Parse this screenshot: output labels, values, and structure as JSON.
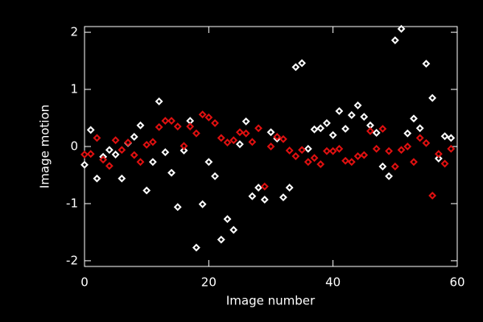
{
  "chart_data": {
    "type": "scatter",
    "xlabel": "Image number",
    "ylabel": "Image motion",
    "xlim": [
      0,
      60
    ],
    "xticks": [
      0,
      20,
      40,
      60
    ],
    "ylim": [
      -2.1,
      2.1
    ],
    "yticks": [
      -2,
      -1,
      0,
      1,
      2
    ],
    "x": [
      0,
      1,
      2,
      3,
      4,
      5,
      6,
      7,
      8,
      9,
      10,
      11,
      12,
      13,
      14,
      15,
      16,
      17,
      18,
      19,
      20,
      21,
      22,
      23,
      24,
      25,
      26,
      27,
      28,
      29,
      30,
      31,
      32,
      33,
      34,
      35,
      36,
      37,
      38,
      39,
      40,
      41,
      42,
      43,
      44,
      45,
      46,
      47,
      48,
      49,
      50,
      51,
      52,
      53,
      54,
      55,
      56,
      57,
      58,
      59
    ],
    "series": [
      {
        "color": "#ffffff",
        "values": [
          -0.32,
          0.29,
          -0.56,
          -0.18,
          -0.06,
          -0.14,
          -0.56,
          0.06,
          0.17,
          0.37,
          -0.77,
          -0.27,
          0.79,
          -0.1,
          -0.46,
          -1.06,
          -0.07,
          0.45,
          -1.77,
          -1.01,
          -0.27,
          -0.52,
          -1.63,
          -1.27,
          -1.46,
          0.04,
          0.44,
          -0.87,
          -0.72,
          -0.93,
          0.25,
          0.14,
          -0.89,
          -0.72,
          1.39,
          1.46,
          -0.04,
          0.3,
          0.32,
          0.41,
          0.2,
          0.62,
          0.31,
          0.55,
          0.72,
          0.52,
          0.37,
          0.24,
          -0.35,
          -0.52,
          1.86,
          2.06,
          0.23,
          0.49,
          0.32,
          1.45,
          0.85,
          -0.21,
          0.18,
          0.15
        ]
      },
      {
        "color": "#e01010",
        "values": [
          -0.14,
          -0.13,
          0.15,
          -0.23,
          -0.34,
          0.11,
          -0.06,
          0.07,
          -0.15,
          -0.27,
          0.03,
          0.08,
          0.34,
          0.45,
          0.45,
          0.35,
          0.01,
          0.35,
          0.23,
          0.56,
          0.51,
          0.41,
          0.15,
          0.07,
          0.11,
          0.25,
          0.23,
          0.08,
          0.32,
          -0.7,
          0.0,
          0.17,
          0.13,
          -0.07,
          -0.17,
          -0.06,
          -0.27,
          -0.2,
          -0.31,
          -0.08,
          -0.08,
          -0.04,
          -0.25,
          -0.27,
          -0.17,
          -0.15,
          0.27,
          -0.04,
          0.31,
          -0.08,
          -0.35,
          -0.06,
          0.0,
          -0.27,
          0.15,
          0.06,
          -0.86,
          -0.13,
          -0.3,
          -0.04
        ]
      }
    ]
  }
}
